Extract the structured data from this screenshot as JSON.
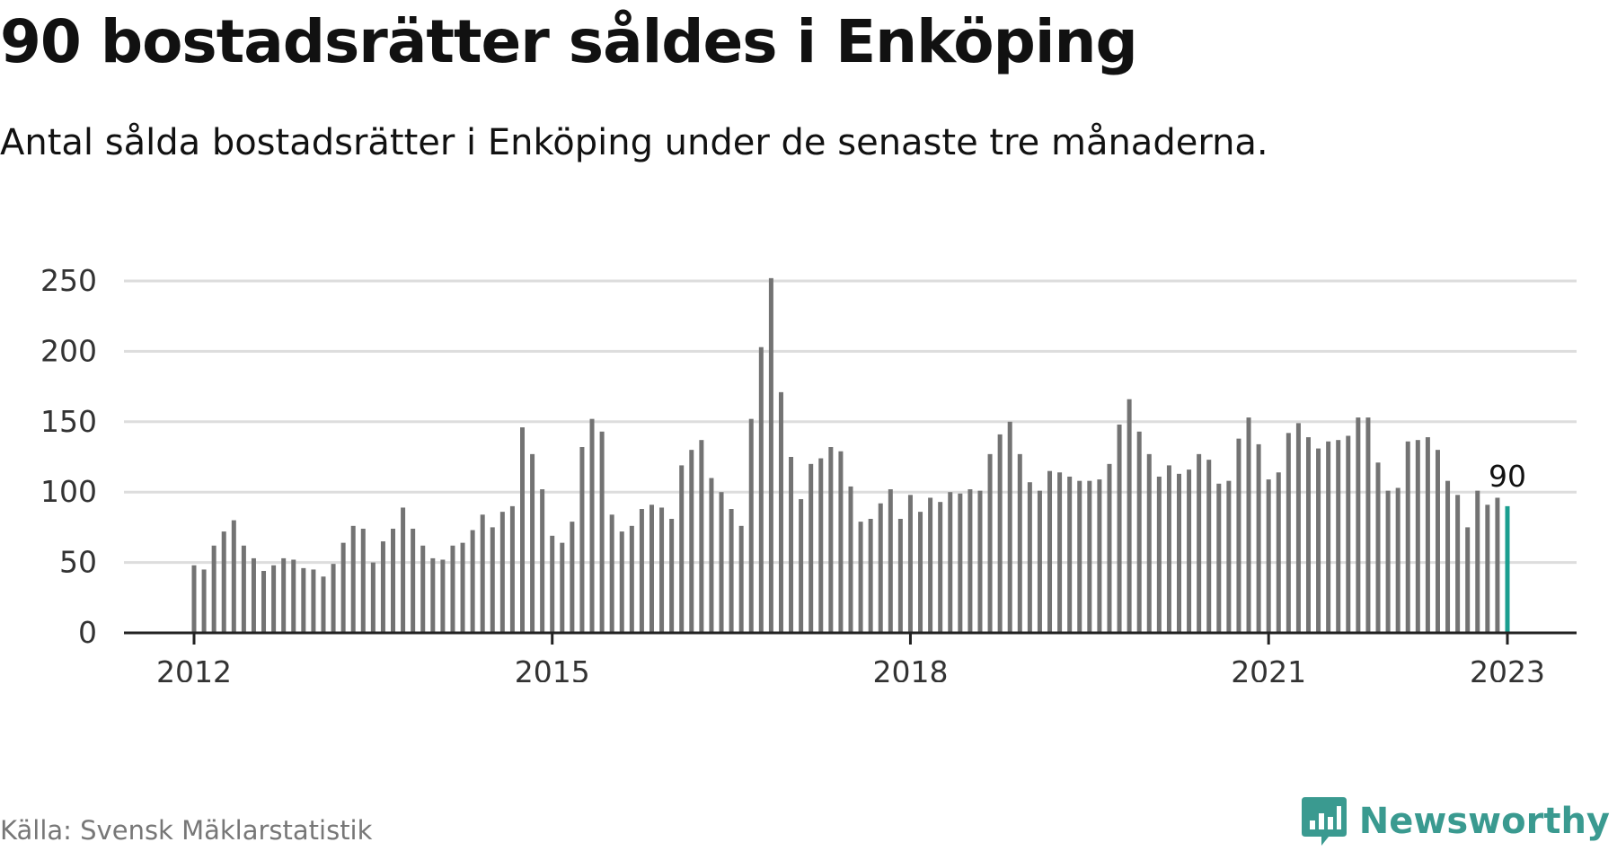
{
  "header": {
    "title": "90 bostadsrätter såldes i Enköping",
    "subtitle": "Antal sålda bostadsrätter i Enköping under de senaste tre månaderna."
  },
  "footer": {
    "source": "Källa: Svensk Mäklarstatistik",
    "brand": "Newsworthy",
    "brand_icon": "bar-chart-speech-bubble-icon"
  },
  "colors": {
    "bar": "#737373",
    "highlight": "#1a9e8f",
    "grid": "#dddddd",
    "axis": "#222222",
    "brand": "#3a9a90"
  },
  "chart_data": {
    "type": "bar",
    "title": "",
    "xlabel": "",
    "ylabel": "",
    "ylim": [
      0,
      255
    ],
    "yticks": [
      0,
      50,
      100,
      150,
      200,
      250
    ],
    "xtick_labels": [
      "2012",
      "2015",
      "2018",
      "2021",
      "2023"
    ],
    "grid": true,
    "x_start": "2012-01",
    "x_end": "2023-01",
    "frequency": "monthly",
    "highlight_last": true,
    "last_value_label": "90",
    "series": [
      {
        "values": [
          48,
          45,
          62,
          72,
          80,
          62,
          53,
          44,
          48,
          53,
          52,
          46,
          45,
          40,
          49,
          64,
          76,
          74,
          50,
          65,
          74,
          89,
          74,
          62,
          53,
          52,
          62,
          64,
          73,
          84,
          75,
          86,
          90,
          146,
          127,
          102,
          69,
          64,
          79,
          132,
          152,
          143,
          84,
          72,
          76,
          88,
          91,
          89,
          81,
          119,
          130,
          137,
          110,
          100,
          88,
          76,
          152,
          203,
          252,
          171,
          125,
          95,
          120,
          124,
          132,
          129,
          104,
          79,
          81,
          92,
          102,
          81,
          98,
          86,
          96,
          93,
          100,
          99,
          102,
          101,
          127,
          141,
          150,
          127,
          107,
          101,
          115,
          114,
          111,
          108,
          108,
          109,
          120,
          148,
          166,
          143,
          127,
          111,
          119,
          113,
          116,
          127,
          123,
          106,
          108,
          138,
          153,
          134,
          109,
          114,
          142,
          149,
          139,
          131,
          136,
          137,
          140,
          153,
          153,
          121,
          101,
          103,
          136,
          137,
          139,
          130,
          108,
          98,
          75,
          101,
          91,
          96,
          90
        ]
      }
    ]
  }
}
